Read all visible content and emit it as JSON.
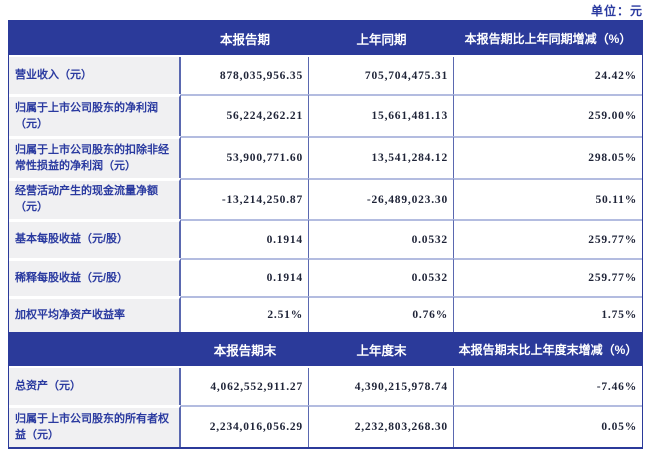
{
  "unit_label": "单位：元",
  "colors": {
    "header_bg": "#2b3a9a",
    "header_text": "#ffffff",
    "label_bg": "#f0f0f2",
    "label_text": "#2a3aa0",
    "value_text": "#1f2438",
    "border_vertical": "#5a68b0",
    "row_separator": "#b3bce0"
  },
  "sections": [
    {
      "headers": {
        "current": "本报告期",
        "prior": "上年同期",
        "change": "本报告期比上年同期增减（%）"
      },
      "rows": [
        {
          "label": "营业收入（元）",
          "current": "878,035,956.35",
          "prior": "705,704,475.31",
          "change": "24.42%"
        },
        {
          "label": "归属于上市公司股东的净利润（元）",
          "current": "56,224,262.21",
          "prior": "15,661,481.13",
          "change": "259.00%"
        },
        {
          "label": "归属于上市公司股东的扣除非经常性损益的净利润（元）",
          "current": "53,900,771.60",
          "prior": "13,541,284.12",
          "change": "298.05%"
        },
        {
          "label": "经营活动产生的现金流量净额（元）",
          "current": "-13,214,250.87",
          "prior": "-26,489,023.30",
          "change": "50.11%"
        },
        {
          "label": "基本每股收益（元/股）",
          "current": "0.1914",
          "prior": "0.0532",
          "change": "259.77%"
        },
        {
          "label": "稀释每股收益（元/股）",
          "current": "0.1914",
          "prior": "0.0532",
          "change": "259.77%"
        },
        {
          "label": "加权平均净资产收益率",
          "current": "2.51%",
          "prior": "0.76%",
          "change": "1.75%"
        }
      ]
    },
    {
      "headers": {
        "current": "本报告期末",
        "prior": "上年度末",
        "change": "本报告期末比上年度末增减（%）"
      },
      "rows": [
        {
          "label": "总资产（元）",
          "current": "4,062,552,911.27",
          "prior": "4,390,215,978.74",
          "change": "-7.46%"
        },
        {
          "label": "归属于上市公司股东的所有者权益（元）",
          "current": "2,234,016,056.29",
          "prior": "2,232,803,268.30",
          "change": "0.05%"
        }
      ]
    }
  ]
}
